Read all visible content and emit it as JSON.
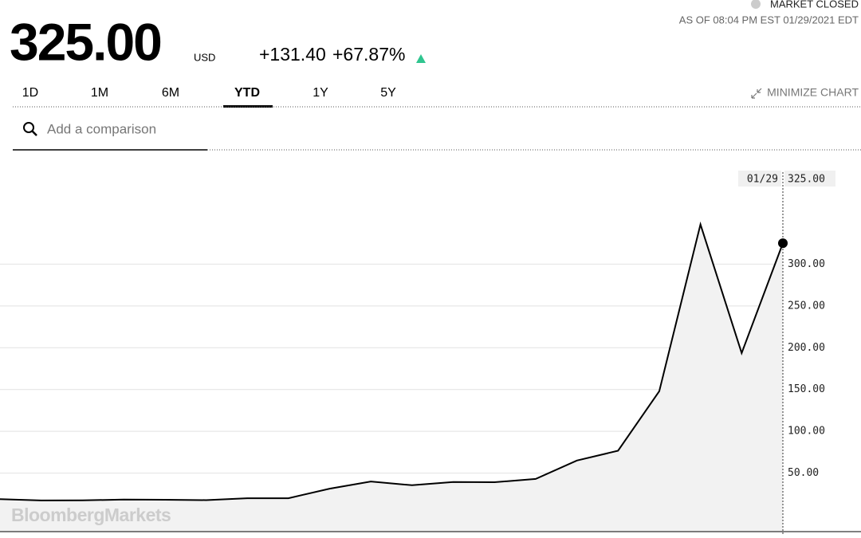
{
  "header": {
    "price": "325.00",
    "currency": "USD",
    "change": "+131.40",
    "change_pct": "+67.87%",
    "status": "MARKET CLOSED",
    "as_of": "AS OF 08:04 PM EST 01/29/2021 EDT"
  },
  "tabs": [
    "1D",
    "1M",
    "6M",
    "YTD",
    "1Y",
    "5Y"
  ],
  "active_tab": 3,
  "minimize": "MINIMIZE CHART",
  "search_placeholder": "Add a comparison",
  "watermark": "BloombergMarkets",
  "chart_data": {
    "type": "line",
    "color": "#000000",
    "categories": [
      null,
      null,
      null,
      null,
      null,
      null,
      null,
      null,
      null,
      null,
      null,
      null,
      null,
      null,
      null,
      null,
      null,
      null,
      null,
      "01/29"
    ],
    "values": [
      18.84,
      17.25,
      17.37,
      18.36,
      18.08,
      17.69,
      19.94,
      19.95,
      31.4,
      39.91,
      35.5,
      39.36,
      39.12,
      43.03,
      65.01,
      76.79,
      147.98,
      347.51,
      193.6,
      325
    ],
    "ylim": [
      -20,
      410
    ],
    "yticks": [
      {
        "value": 50,
        "label": "50.00"
      },
      {
        "value": 100,
        "label": "100.00"
      },
      {
        "value": 150,
        "label": "150.00"
      },
      {
        "value": 200,
        "label": "200.00"
      },
      {
        "value": 250,
        "label": "250.00"
      },
      {
        "value": 300,
        "label": "300.00"
      }
    ],
    "grid": true
  }
}
